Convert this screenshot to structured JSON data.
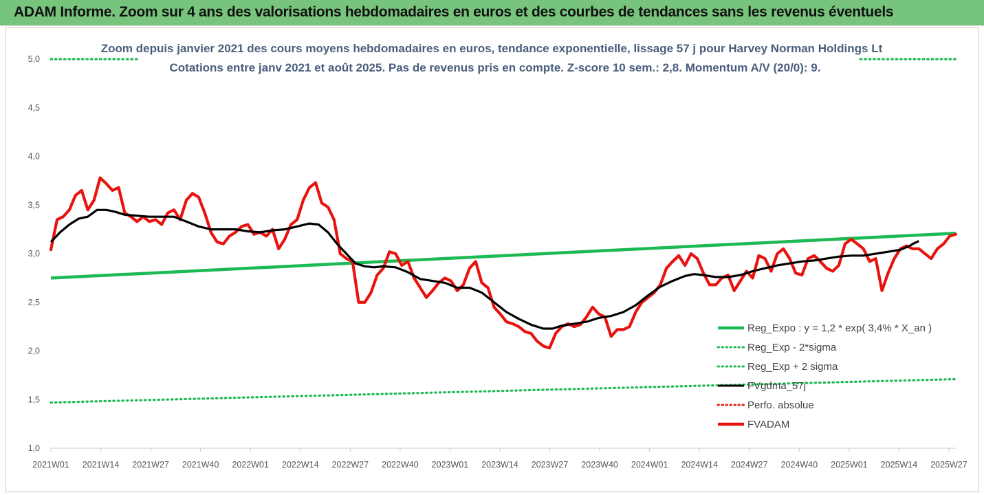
{
  "banner": {
    "text": "ADAM Informe. Zoom sur 4 ans des valorisations hebdomadaires en euros et des courbes de tendances sans les revenus éventuels"
  },
  "chart_data": {
    "type": "line",
    "title": [
      "Zoom depuis janvier 2021 des cours moyens hebdomadaires en euros, tendance exponentielle, lissage 57 j pour Harvey Norman Holdings Lt",
      "Cotations entre janv 2021 et août 2025.  Pas de revenus pris en compte. Z-score 10 sem.: 2,8. Momentum A/V (20/0): 9."
    ],
    "ylim": [
      1.0,
      5.0
    ],
    "y_ticks": [
      "1,0",
      "1,5",
      "2,0",
      "2,5",
      "3,0",
      "3,5",
      "4,0",
      "4,5",
      "5,0"
    ],
    "x_ticks": [
      "2021W01",
      "2021W14",
      "2021W27",
      "2021W40",
      "2022W01",
      "2022W14",
      "2022W27",
      "2022W40",
      "2023W01",
      "2023W14",
      "2023W27",
      "2023W40",
      "2024W01",
      "2024W14",
      "2024W27",
      "2024W40",
      "2025W01",
      "2025W14",
      "2025W27"
    ],
    "x_range_weeks": [
      0,
      239
    ],
    "legend": [
      {
        "label": "Reg_Expo : y = 1,2 * exp( 3,4% *  X_an )",
        "style": "solid",
        "color": "#1db954"
      },
      {
        "label": "Reg_Exp - 2*sigma",
        "style": "dotted",
        "color": "#1db954"
      },
      {
        "label": "Reg_Exp + 2 sigma",
        "style": "dotted",
        "color": "#1db954"
      },
      {
        "label": "FVgdma_57j",
        "style": "solid",
        "color": "#000000"
      },
      {
        "label": "Perfo. absolue",
        "style": "dotted",
        "color": "#e0241c"
      },
      {
        "label": "FVADAM",
        "style": "solid",
        "color": "#e8130e"
      }
    ],
    "series": [
      {
        "name": "Reg_Expo : y = 1,2 * exp( 3,4% *  X_an )",
        "color": "#1db954",
        "points": [
          [
            0,
            2.75
          ],
          [
            239,
            3.21
          ]
        ]
      },
      {
        "name": "Reg_Exp - 2*sigma",
        "color": "#1db954",
        "points": [
          [
            0,
            1.47
          ],
          [
            239,
            1.71
          ]
        ]
      },
      {
        "name": "Reg_Exp + 2 sigma",
        "color": "#1db954",
        "points": [
          [
            0,
            5.0
          ],
          [
            18,
            5.0
          ],
          [
            216,
            5.0
          ],
          [
            239,
            5.0
          ]
        ]
      },
      {
        "name": "FVgdma_57j",
        "color": "#000000",
        "points": [
          [
            0,
            3.12
          ],
          [
            3,
            3.22
          ],
          [
            6,
            3.3
          ],
          [
            9,
            3.36
          ],
          [
            12,
            3.38
          ],
          [
            15,
            3.45
          ],
          [
            18,
            3.45
          ],
          [
            21,
            3.43
          ],
          [
            24,
            3.4
          ],
          [
            28,
            3.39
          ],
          [
            32,
            3.38
          ],
          [
            36,
            3.38
          ],
          [
            40,
            3.38
          ],
          [
            44,
            3.33
          ],
          [
            48,
            3.28
          ],
          [
            52,
            3.25
          ],
          [
            56,
            3.25
          ],
          [
            60,
            3.25
          ],
          [
            64,
            3.23
          ],
          [
            68,
            3.22
          ],
          [
            72,
            3.24
          ],
          [
            76,
            3.25
          ],
          [
            80,
            3.28
          ],
          [
            84,
            3.31
          ],
          [
            87,
            3.3
          ],
          [
            90,
            3.22
          ],
          [
            93,
            3.1
          ],
          [
            96,
            3.0
          ],
          [
            99,
            2.9
          ],
          [
            102,
            2.87
          ],
          [
            105,
            2.86
          ],
          [
            108,
            2.87
          ],
          [
            112,
            2.86
          ],
          [
            116,
            2.81
          ],
          [
            120,
            2.74
          ],
          [
            124,
            2.72
          ],
          [
            128,
            2.7
          ],
          [
            132,
            2.65
          ],
          [
            136,
            2.65
          ],
          [
            140,
            2.6
          ],
          [
            144,
            2.5
          ],
          [
            148,
            2.4
          ],
          [
            152,
            2.33
          ],
          [
            156,
            2.27
          ],
          [
            160,
            2.23
          ],
          [
            163,
            2.23
          ],
          [
            166,
            2.26
          ],
          [
            170,
            2.28
          ],
          [
            174,
            2.3
          ],
          [
            178,
            2.34
          ],
          [
            182,
            2.36
          ],
          [
            186,
            2.4
          ],
          [
            190,
            2.47
          ],
          [
            194,
            2.57
          ],
          [
            198,
            2.66
          ],
          [
            202,
            2.72
          ],
          [
            206,
            2.77
          ],
          [
            209,
            2.79
          ],
          [
            212,
            2.78
          ],
          [
            216,
            2.76
          ],
          [
            220,
            2.76
          ],
          [
            224,
            2.78
          ],
          [
            228,
            2.82
          ],
          [
            232,
            2.85
          ],
          [
            236,
            2.88
          ],
          [
            240,
            2.9
          ],
          [
            244,
            2.92
          ],
          [
            248,
            2.93
          ],
          [
            252,
            2.95
          ],
          [
            256,
            2.97
          ],
          [
            260,
            2.98
          ],
          [
            264,
            2.98
          ],
          [
            268,
            3.0
          ],
          [
            272,
            3.02
          ],
          [
            276,
            3.04
          ],
          [
            279,
            3.08
          ],
          [
            280,
            3.1
          ],
          [
            282,
            3.13
          ]
        ]
      },
      {
        "name": "FVADAM",
        "color": "#e8130e",
        "points": [
          [
            0,
            3.04
          ],
          [
            2,
            3.35
          ],
          [
            4,
            3.38
          ],
          [
            6,
            3.45
          ],
          [
            8,
            3.6
          ],
          [
            10,
            3.65
          ],
          [
            12,
            3.45
          ],
          [
            14,
            3.55
          ],
          [
            16,
            3.78
          ],
          [
            18,
            3.72
          ],
          [
            20,
            3.65
          ],
          [
            22,
            3.68
          ],
          [
            24,
            3.42
          ],
          [
            26,
            3.38
          ],
          [
            28,
            3.33
          ],
          [
            30,
            3.38
          ],
          [
            32,
            3.33
          ],
          [
            34,
            3.35
          ],
          [
            36,
            3.3
          ],
          [
            38,
            3.42
          ],
          [
            40,
            3.45
          ],
          [
            42,
            3.35
          ],
          [
            44,
            3.55
          ],
          [
            46,
            3.62
          ],
          [
            48,
            3.58
          ],
          [
            50,
            3.42
          ],
          [
            52,
            3.22
          ],
          [
            54,
            3.12
          ],
          [
            56,
            3.1
          ],
          [
            58,
            3.18
          ],
          [
            60,
            3.22
          ],
          [
            62,
            3.28
          ],
          [
            64,
            3.3
          ],
          [
            66,
            3.2
          ],
          [
            68,
            3.22
          ],
          [
            70,
            3.18
          ],
          [
            72,
            3.25
          ],
          [
            74,
            3.05
          ],
          [
            76,
            3.15
          ],
          [
            78,
            3.3
          ],
          [
            80,
            3.35
          ],
          [
            82,
            3.55
          ],
          [
            84,
            3.68
          ],
          [
            86,
            3.73
          ],
          [
            88,
            3.52
          ],
          [
            90,
            3.48
          ],
          [
            92,
            3.35
          ],
          [
            94,
            3.0
          ],
          [
            96,
            2.95
          ],
          [
            98,
            2.92
          ],
          [
            100,
            2.5
          ],
          [
            102,
            2.5
          ],
          [
            104,
            2.6
          ],
          [
            106,
            2.78
          ],
          [
            108,
            2.85
          ],
          [
            110,
            3.02
          ],
          [
            112,
            3.0
          ],
          [
            114,
            2.88
          ],
          [
            116,
            2.92
          ],
          [
            118,
            2.75
          ],
          [
            120,
            2.65
          ],
          [
            122,
            2.55
          ],
          [
            124,
            2.62
          ],
          [
            126,
            2.7
          ],
          [
            128,
            2.75
          ],
          [
            130,
            2.72
          ],
          [
            132,
            2.62
          ],
          [
            134,
            2.68
          ],
          [
            136,
            2.85
          ],
          [
            138,
            2.92
          ],
          [
            140,
            2.7
          ],
          [
            142,
            2.65
          ],
          [
            144,
            2.45
          ],
          [
            146,
            2.38
          ],
          [
            148,
            2.3
          ],
          [
            150,
            2.28
          ],
          [
            152,
            2.25
          ],
          [
            154,
            2.2
          ],
          [
            156,
            2.18
          ],
          [
            158,
            2.1
          ],
          [
            160,
            2.05
          ],
          [
            162,
            2.03
          ],
          [
            164,
            2.18
          ],
          [
            166,
            2.25
          ],
          [
            168,
            2.28
          ],
          [
            170,
            2.25
          ],
          [
            172,
            2.27
          ],
          [
            174,
            2.35
          ],
          [
            176,
            2.45
          ],
          [
            178,
            2.38
          ],
          [
            180,
            2.35
          ],
          [
            182,
            2.15
          ],
          [
            184,
            2.22
          ],
          [
            186,
            2.22
          ],
          [
            188,
            2.25
          ],
          [
            190,
            2.4
          ],
          [
            192,
            2.5
          ],
          [
            194,
            2.55
          ],
          [
            196,
            2.6
          ],
          [
            198,
            2.68
          ],
          [
            200,
            2.85
          ],
          [
            202,
            2.92
          ],
          [
            204,
            2.98
          ],
          [
            206,
            2.88
          ],
          [
            208,
            3.0
          ],
          [
            210,
            2.95
          ],
          [
            212,
            2.8
          ],
          [
            214,
            2.68
          ],
          [
            216,
            2.68
          ],
          [
            218,
            2.75
          ],
          [
            220,
            2.78
          ],
          [
            222,
            2.62
          ],
          [
            224,
            2.72
          ],
          [
            226,
            2.82
          ],
          [
            228,
            2.75
          ],
          [
            230,
            2.98
          ],
          [
            232,
            2.95
          ],
          [
            234,
            2.82
          ],
          [
            236,
            3.0
          ],
          [
            238,
            3.05
          ],
          [
            240,
            2.95
          ],
          [
            242,
            2.8
          ],
          [
            244,
            2.78
          ],
          [
            246,
            2.95
          ],
          [
            248,
            2.98
          ],
          [
            250,
            2.92
          ],
          [
            252,
            2.85
          ],
          [
            254,
            2.82
          ],
          [
            256,
            2.88
          ],
          [
            258,
            3.1
          ],
          [
            260,
            3.15
          ],
          [
            262,
            3.1
          ],
          [
            264,
            3.05
          ],
          [
            266,
            2.92
          ],
          [
            268,
            2.95
          ],
          [
            270,
            2.62
          ],
          [
            272,
            2.8
          ],
          [
            274,
            2.95
          ],
          [
            276,
            3.05
          ],
          [
            278,
            3.08
          ],
          [
            280,
            3.05
          ],
          [
            282,
            3.05
          ],
          [
            284,
            3.0
          ],
          [
            286,
            2.95
          ],
          [
            288,
            3.05
          ],
          [
            290,
            3.1
          ],
          [
            292,
            3.18
          ],
          [
            294,
            3.2
          ]
        ]
      }
    ]
  }
}
